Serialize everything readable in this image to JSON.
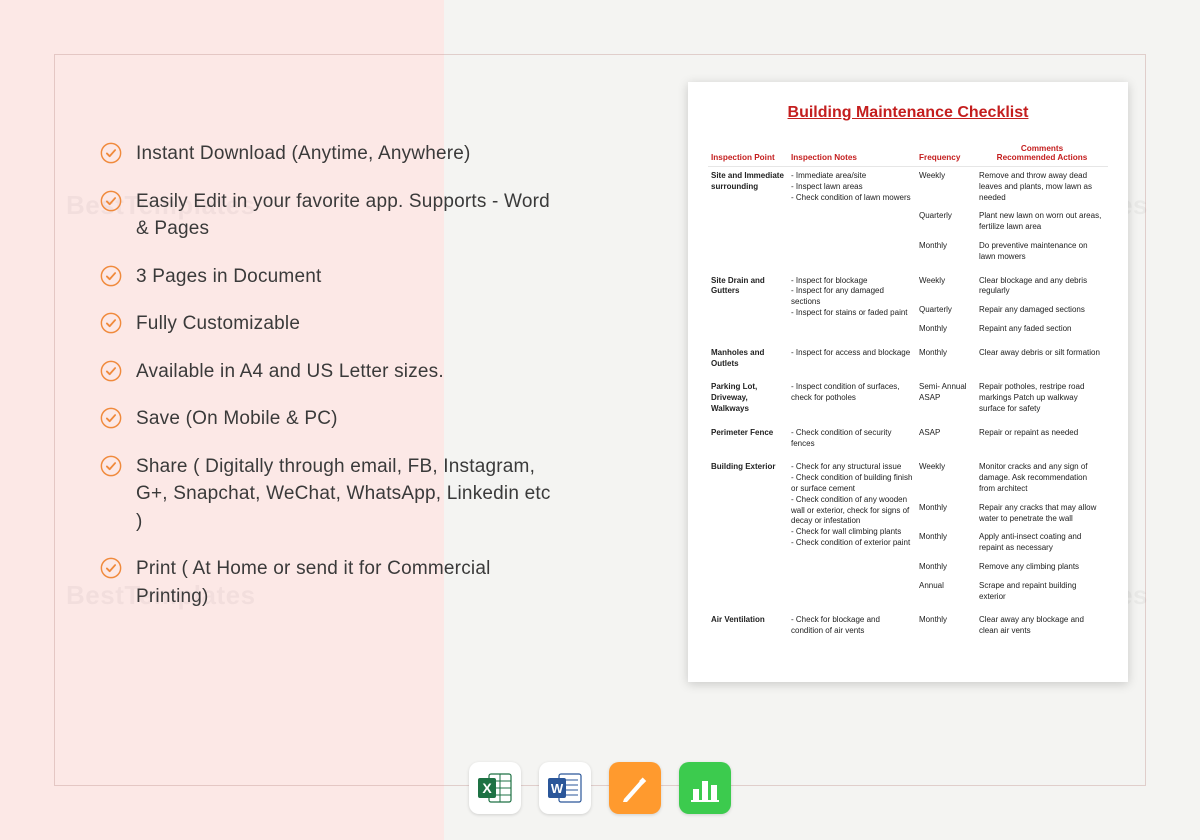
{
  "colors": {
    "accent_orange": "#f08a3c",
    "doc_red": "#c41e1e",
    "text_dark": "#3a3a3a",
    "bg_left": "#fce8e6",
    "bg_right": "#f4f4f2",
    "excel": "#1e7244",
    "word": "#2a5699",
    "pages": "#ff9a2e",
    "numbers": "#3ccb4e"
  },
  "watermark": "BestTemplates",
  "features": [
    "Instant Download (Anytime, Anywhere)",
    "Easily Edit in your favorite app. Supports - Word & Pages",
    "3 Pages in Document",
    "Fully Customizable",
    "Available in A4 and US Letter sizes.",
    "Save (On Mobile & PC)",
    "Share ( Digitally through email, FB, Instagram, G+, Snapchat, WeChat, WhatsApp, Linkedin etc )",
    "Print ( At Home or send it for Commercial Printing)"
  ],
  "document": {
    "title": "Building Maintenance Checklist",
    "headers": [
      "Inspection Point",
      "Inspection Notes",
      "Frequency",
      "Comments / Recommended Actions"
    ],
    "rows": [
      {
        "point": "Site and Immediate surrounding",
        "notes": [
          "Immediate area/site",
          "Inspect lawn areas",
          "Check condition of lawn mowers"
        ],
        "freq_actions": [
          [
            "Weekly",
            "Remove and throw away dead leaves and plants, mow lawn as needed"
          ],
          [
            "Quarterly",
            "Plant new lawn on worn out areas, fertilize lawn area"
          ],
          [
            "Monthly",
            "Do preventive maintenance on lawn mowers"
          ]
        ]
      },
      {
        "point": "Site Drain and Gutters",
        "notes": [
          "Inspect for blockage",
          "Inspect for any damaged sections",
          "Inspect for stains or faded paint"
        ],
        "freq_actions": [
          [
            "Weekly",
            "Clear blockage and any debris regularly"
          ],
          [
            "Quarterly",
            "Repair any damaged sections"
          ],
          [
            "Monthly",
            "Repaint any faded section"
          ]
        ]
      },
      {
        "point": "Manholes and Outlets",
        "notes": [
          "Inspect for access and blockage"
        ],
        "freq_actions": [
          [
            "Monthly",
            "Clear away debris or silt formation"
          ]
        ]
      },
      {
        "point": "Parking Lot, Driveway, Walkways",
        "notes": [
          "Inspect condition of surfaces, check for potholes"
        ],
        "freq_actions": [
          [
            "Semi- Annual ASAP",
            "Repair potholes, restripe road markings Patch up walkway surface for safety"
          ]
        ]
      },
      {
        "point": "Perimeter Fence",
        "notes": [
          "Check condition of security fences"
        ],
        "freq_actions": [
          [
            "ASAP",
            "Repair or repaint as needed"
          ]
        ]
      },
      {
        "point": "Building Exterior",
        "notes": [
          "Check for any structural issue",
          "Check condition of building finish or surface cement",
          "Check condition of any wooden wall or exterior, check for signs of decay or infestation",
          "Check for wall climbing plants",
          "Check condition of exterior paint"
        ],
        "freq_actions": [
          [
            "Weekly",
            "Monitor cracks and any sign of damage. Ask recommendation from architect"
          ],
          [
            "Monthly",
            "Repair any cracks that may allow water to penetrate the wall"
          ],
          [
            "Monthly",
            "Apply anti-insect coating and repaint as necessary"
          ],
          [
            "Monthly",
            "Remove any climbing plants"
          ],
          [
            "Annual",
            "Scrape and repaint building exterior"
          ]
        ]
      },
      {
        "point": "Air Ventilation",
        "notes": [
          "Check for blockage and condition of air vents"
        ],
        "freq_actions": [
          [
            "Monthly",
            "Clear away any blockage and clean air vents"
          ]
        ]
      }
    ]
  },
  "app_icons": [
    {
      "name": "excel-icon",
      "bg": "#ffffff",
      "accent": "#1e7244",
      "type": "excel"
    },
    {
      "name": "word-icon",
      "bg": "#ffffff",
      "accent": "#2a5699",
      "type": "word"
    },
    {
      "name": "pages-icon",
      "bg": "#ff9a2e",
      "accent": "#ffffff",
      "type": "pages"
    },
    {
      "name": "numbers-icon",
      "bg": "#3ccb4e",
      "accent": "#ffffff",
      "type": "numbers"
    }
  ]
}
